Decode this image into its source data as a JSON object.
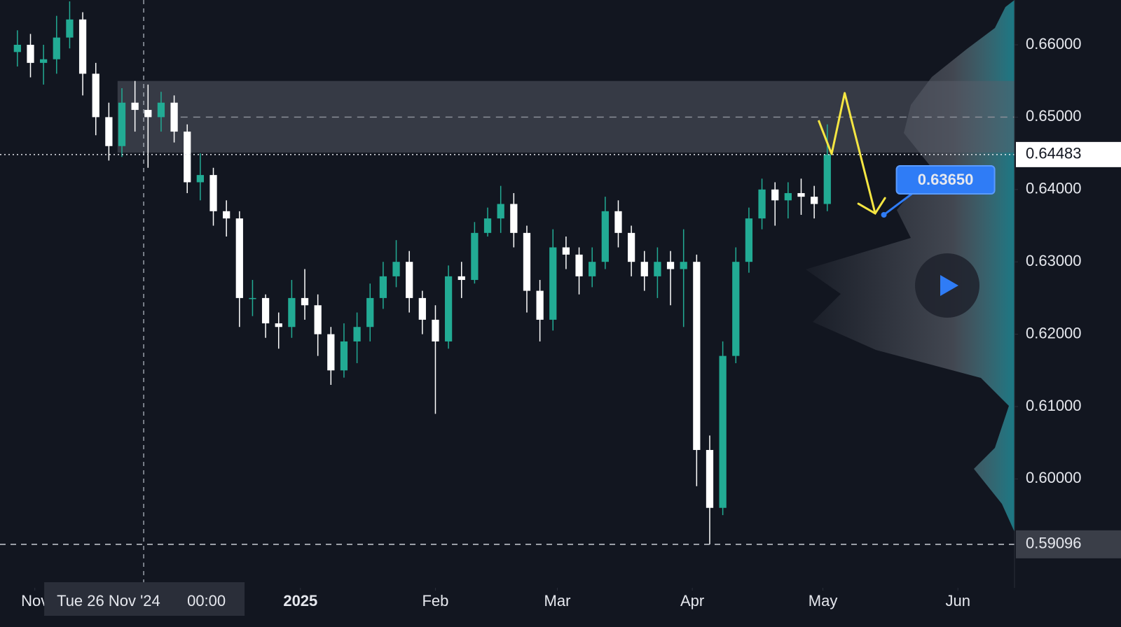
{
  "chart_data": {
    "type": "candlestick",
    "x": [
      "2024-10-28",
      "2024-10-31",
      "2024-11-03",
      "2024-11-06",
      "2024-11-09",
      "2024-11-12",
      "2024-11-15",
      "2024-11-18",
      "2024-11-21",
      "2024-11-24",
      "2024-11-27",
      "2024-11-30",
      "2024-12-03",
      "2024-12-06",
      "2024-12-09",
      "2024-12-12",
      "2024-12-15",
      "2024-12-18",
      "2024-12-21",
      "2024-12-24",
      "2024-12-27",
      "2024-12-30",
      "2025-01-02",
      "2025-01-05",
      "2025-01-08",
      "2025-01-11",
      "2025-01-14",
      "2025-01-17",
      "2025-01-20",
      "2025-01-23",
      "2025-01-26",
      "2025-01-29",
      "2025-02-01",
      "2025-02-04",
      "2025-02-07",
      "2025-02-10",
      "2025-02-13",
      "2025-02-16",
      "2025-02-19",
      "2025-02-22",
      "2025-02-25",
      "2025-02-28",
      "2025-03-03",
      "2025-03-06",
      "2025-03-09",
      "2025-03-12",
      "2025-03-15",
      "2025-03-18",
      "2025-03-21",
      "2025-03-24",
      "2025-03-27",
      "2025-03-30",
      "2025-04-02",
      "2025-04-05",
      "2025-04-08",
      "2025-04-11",
      "2025-04-14",
      "2025-04-17",
      "2025-04-20",
      "2025-04-23",
      "2025-04-26",
      "2025-04-29",
      "2025-05-02"
    ],
    "open": [
      0.659,
      0.66,
      0.6575,
      0.658,
      0.661,
      0.6635,
      0.656,
      0.65,
      0.646,
      0.652,
      0.651,
      0.65,
      0.652,
      0.648,
      0.641,
      0.642,
      0.637,
      0.636,
      0.625,
      0.625,
      0.6215,
      0.621,
      0.625,
      0.624,
      0.62,
      0.615,
      0.619,
      0.621,
      0.625,
      0.628,
      0.63,
      0.625,
      0.622,
      0.619,
      0.628,
      0.6275,
      0.634,
      0.636,
      0.638,
      0.634,
      0.626,
      0.622,
      0.632,
      0.631,
      0.628,
      0.63,
      0.637,
      0.634,
      0.63,
      0.628,
      0.63,
      0.629,
      0.63,
      0.604,
      0.596,
      0.617,
      0.63,
      0.636,
      0.64,
      0.6385,
      0.6395,
      0.639,
      0.638
    ],
    "high": [
      0.662,
      0.6615,
      0.66,
      0.664,
      0.666,
      0.6645,
      0.6575,
      0.652,
      0.654,
      0.655,
      0.6545,
      0.6535,
      0.653,
      0.649,
      0.645,
      0.643,
      0.6385,
      0.637,
      0.6275,
      0.6255,
      0.623,
      0.6275,
      0.629,
      0.6255,
      0.621,
      0.6215,
      0.623,
      0.627,
      0.63,
      0.633,
      0.6315,
      0.626,
      0.624,
      0.6295,
      0.63,
      0.6355,
      0.6375,
      0.6405,
      0.6395,
      0.635,
      0.6275,
      0.6345,
      0.6335,
      0.632,
      0.632,
      0.639,
      0.6385,
      0.635,
      0.6315,
      0.632,
      0.6315,
      0.6345,
      0.631,
      0.606,
      0.619,
      0.632,
      0.6375,
      0.6415,
      0.641,
      0.641,
      0.6415,
      0.6405,
      0.649
    ],
    "low": [
      0.657,
      0.6555,
      0.6545,
      0.656,
      0.6595,
      0.653,
      0.6475,
      0.644,
      0.6445,
      0.648,
      0.643,
      0.648,
      0.6465,
      0.6395,
      0.6385,
      0.635,
      0.6335,
      0.621,
      0.6225,
      0.6195,
      0.618,
      0.6195,
      0.622,
      0.617,
      0.613,
      0.614,
      0.616,
      0.619,
      0.6235,
      0.6265,
      0.623,
      0.62,
      0.609,
      0.618,
      0.625,
      0.627,
      0.6335,
      0.634,
      0.632,
      0.623,
      0.619,
      0.6205,
      0.629,
      0.6255,
      0.6265,
      0.629,
      0.632,
      0.628,
      0.626,
      0.625,
      0.624,
      0.621,
      0.599,
      0.59096,
      0.595,
      0.616,
      0.6285,
      0.6345,
      0.635,
      0.636,
      0.6365,
      0.636,
      0.637
    ],
    "close": [
      0.66,
      0.6575,
      0.658,
      0.661,
      0.6635,
      0.656,
      0.65,
      0.646,
      0.652,
      0.651,
      0.65,
      0.652,
      0.648,
      0.641,
      0.642,
      0.637,
      0.636,
      0.625,
      0.625,
      0.6215,
      0.621,
      0.625,
      0.624,
      0.62,
      0.615,
      0.619,
      0.621,
      0.625,
      0.628,
      0.63,
      0.625,
      0.622,
      0.619,
      0.628,
      0.6275,
      0.634,
      0.636,
      0.638,
      0.634,
      0.626,
      0.622,
      0.632,
      0.631,
      0.628,
      0.63,
      0.637,
      0.634,
      0.63,
      0.628,
      0.63,
      0.629,
      0.63,
      0.604,
      0.596,
      0.617,
      0.63,
      0.636,
      0.64,
      0.6385,
      0.6395,
      0.639,
      0.638,
      0.64483
    ],
    "up_color": "#22ab94",
    "down_color": "#ffffff",
    "xlim": [
      "2024-10-24",
      "2025-06-14"
    ],
    "ylim": [
      0.58495,
      0.66619
    ],
    "yticks": [
      {
        "value": 0.66,
        "label": "0.66000"
      },
      {
        "value": 0.65,
        "label": "0.65000"
      },
      {
        "value": 0.64,
        "label": "0.64000"
      },
      {
        "value": 0.63,
        "label": "0.63000"
      },
      {
        "value": 0.62,
        "label": "0.62000"
      },
      {
        "value": 0.61,
        "label": "0.61000"
      },
      {
        "value": 0.6,
        "label": "0.60000"
      }
    ],
    "xticks": [
      {
        "value": "2024-11-01",
        "label": "Nov"
      },
      {
        "value": "2025-01-01",
        "label": "2025"
      },
      {
        "value": "2025-02-01",
        "label": "Feb"
      },
      {
        "value": "2025-03-01",
        "label": "Mar"
      },
      {
        "value": "2025-04-01",
        "label": "Apr"
      },
      {
        "value": "2025-05-01",
        "label": "May"
      },
      {
        "value": "2025-06-01",
        "label": "Jun"
      }
    ],
    "zone": {
      "start": "2024-11-20",
      "low": 0.6451,
      "high": 0.655
    },
    "level_line": 0.65,
    "last_price": {
      "value": 0.64483,
      "label": "0.64483"
    },
    "low_price": {
      "value": 0.59096,
      "label": "0.59096"
    },
    "crosshair": {
      "x": "2024-11-26",
      "date_label": "Tue 26 Nov '24",
      "time_label": "00:00"
    },
    "projection": {
      "x": [
        "2025-04-30",
        "2025-05-03",
        "2025-05-06",
        "2025-05-13"
      ],
      "values": [
        0.64956,
        0.64491,
        0.65333,
        0.63669
      ],
      "color": "#f5e642"
    },
    "target": {
      "x": "2025-05-15",
      "value": 0.6365,
      "label": "0.63650"
    }
  }
}
